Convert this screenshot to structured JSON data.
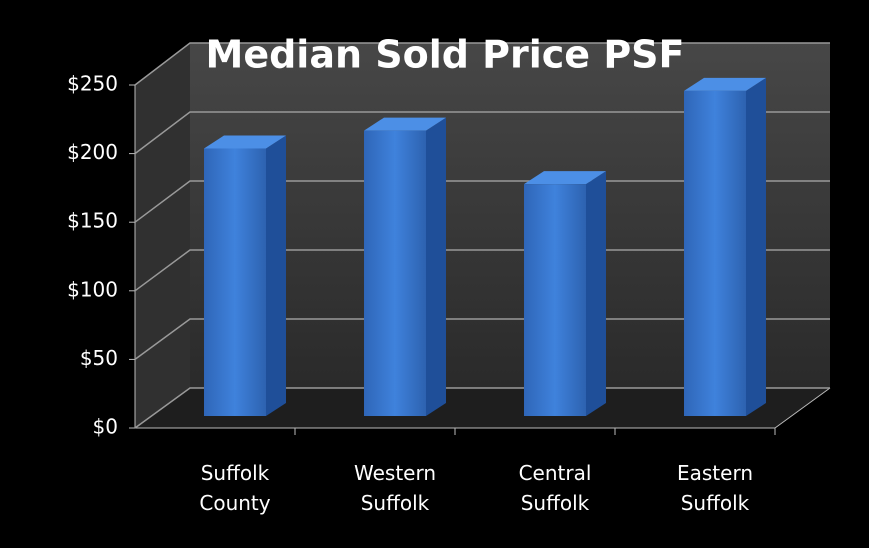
{
  "chart_data": {
    "type": "bar",
    "title": "Median Sold Price PSF",
    "categories": [
      "Suffolk County",
      "Western Suffolk",
      "Central Suffolk",
      "Eastern Suffolk"
    ],
    "values": [
      195,
      208,
      169,
      237
    ],
    "color": "#3a78d0",
    "ylim": [
      0,
      250
    ],
    "yticks": [
      {
        "value": 0,
        "label": "$0"
      },
      {
        "value": 50,
        "label": "$50"
      },
      {
        "value": 100,
        "label": "$100"
      },
      {
        "value": 150,
        "label": "$150"
      },
      {
        "value": 200,
        "label": "$200"
      },
      {
        "value": 250,
        "label": "$250"
      }
    ],
    "grid": true
  }
}
